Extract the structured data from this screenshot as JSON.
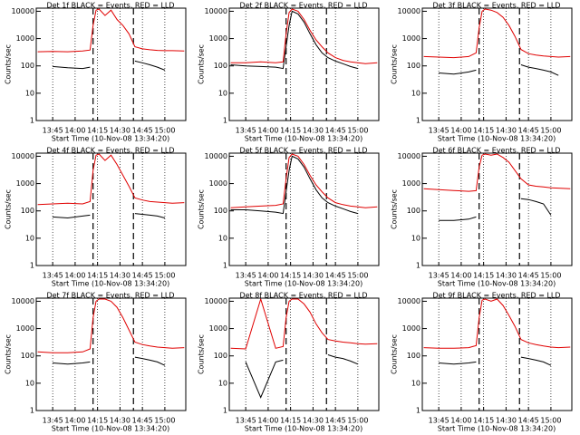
{
  "chart_data": [
    {
      "type": "line",
      "title": "Det 1f BLACK = Events, RED = LLD",
      "xlabel": "Start Time (10-Nov-08 13:34:20)",
      "ylabel": "Counts/sec",
      "log": true,
      "grid": true,
      "x": [
        "13:35",
        "13:45",
        "13:55",
        "14:05",
        "14:10",
        "14:12",
        "14:14",
        "14:16",
        "14:20",
        "14:24",
        "14:28",
        "14:32",
        "14:36",
        "14:40",
        "14:45",
        "14:50",
        "14:55",
        "15:00",
        "15:05",
        "15:13"
      ],
      "xlim": [
        "13:34",
        "15:14"
      ],
      "xticks": [
        "13:45",
        "14:00",
        "14:15",
        "14:30",
        "14:45",
        "15:00"
      ],
      "ylim": [
        1,
        13000
      ],
      "yticks": [
        1,
        10,
        100,
        1000,
        10000
      ],
      "markers": [
        "14:12",
        "14:39"
      ],
      "series": [
        {
          "name": "Events",
          "color": "#000000",
          "values": [
            null,
            95,
            85,
            80,
            90,
            null,
            null,
            null,
            null,
            null,
            null,
            null,
            null,
            150,
            130,
            110,
            90,
            70,
            null,
            null
          ]
        },
        {
          "name": "LLD",
          "color": "#e00000",
          "values": [
            330,
            340,
            330,
            350,
            380,
            3000,
            11000,
            12000,
            7000,
            11000,
            5000,
            3000,
            1500,
            500,
            420,
            390,
            370,
            360,
            360,
            350
          ]
        }
      ]
    },
    {
      "type": "line",
      "title": "Det 2f BLACK = Events, RED = LLD",
      "xlabel": "Start Time (10-Nov-08 13:34:20)",
      "ylabel": "Counts/sec",
      "log": true,
      "grid": true,
      "x": [
        "13:35",
        "13:45",
        "13:55",
        "14:05",
        "14:10",
        "14:12",
        "14:14",
        "14:16",
        "14:20",
        "14:24",
        "14:28",
        "14:32",
        "14:36",
        "14:40",
        "14:45",
        "14:50",
        "14:55",
        "15:00",
        "15:05",
        "15:13"
      ],
      "xlim": [
        "13:34",
        "15:14"
      ],
      "xticks": [
        "13:45",
        "14:00",
        "14:15",
        "14:30",
        "14:45",
        "15:00"
      ],
      "ylim": [
        1,
        13000
      ],
      "yticks": [
        1,
        10,
        100,
        1000,
        10000
      ],
      "markers": [
        "14:12",
        "14:39"
      ],
      "series": [
        {
          "name": "Events",
          "color": "#000000",
          "values": [
            110,
            100,
            95,
            90,
            80,
            500,
            3000,
            10000,
            8000,
            4000,
            1500,
            600,
            300,
            200,
            150,
            120,
            95,
            80,
            null,
            null
          ]
        },
        {
          "name": "LLD",
          "color": "#e00000",
          "values": [
            130,
            130,
            140,
            130,
            140,
            1500,
            9000,
            12000,
            10000,
            5000,
            2000,
            900,
            500,
            300,
            200,
            160,
            140,
            130,
            120,
            130
          ]
        }
      ]
    },
    {
      "type": "line",
      "title": "Det 3f BLACK = Events, RED = LLD",
      "xlabel": "Start Time (10-Nov-08 13:34:20)",
      "ylabel": "Counts/sec",
      "log": true,
      "grid": true,
      "x": [
        "13:35",
        "13:45",
        "13:55",
        "14:05",
        "14:10",
        "14:12",
        "14:14",
        "14:16",
        "14:20",
        "14:24",
        "14:28",
        "14:32",
        "14:36",
        "14:40",
        "14:45",
        "14:50",
        "14:55",
        "15:00",
        "15:05",
        "15:13"
      ],
      "xlim": [
        "13:34",
        "15:14"
      ],
      "xticks": [
        "13:45",
        "14:00",
        "14:15",
        "14:30",
        "14:45",
        "15:00"
      ],
      "ylim": [
        1,
        13000
      ],
      "yticks": [
        1,
        10,
        100,
        1000,
        10000
      ],
      "markers": [
        "14:12",
        "14:39"
      ],
      "series": [
        {
          "name": "Events",
          "color": "#000000",
          "values": [
            null,
            55,
            50,
            60,
            70,
            null,
            null,
            null,
            null,
            null,
            null,
            null,
            null,
            110,
            90,
            80,
            70,
            60,
            45,
            null
          ]
        },
        {
          "name": "LLD",
          "color": "#e00000",
          "values": [
            220,
            210,
            200,
            220,
            300,
            2500,
            10000,
            12000,
            11000,
            9000,
            6000,
            3000,
            1200,
            400,
            280,
            250,
            230,
            220,
            210,
            220
          ]
        }
      ]
    },
    {
      "type": "line",
      "title": "Det 4f BLACK = Events, RED = LLD",
      "xlabel": "Start Time (10-Nov-08 13:34:20)",
      "ylabel": "Counts/sec",
      "log": true,
      "grid": true,
      "x": [
        "13:35",
        "13:45",
        "13:55",
        "14:05",
        "14:10",
        "14:12",
        "14:14",
        "14:16",
        "14:20",
        "14:24",
        "14:28",
        "14:32",
        "14:36",
        "14:40",
        "14:45",
        "14:50",
        "14:55",
        "15:00",
        "15:05",
        "15:13"
      ],
      "xlim": [
        "13:34",
        "15:14"
      ],
      "xticks": [
        "13:45",
        "14:00",
        "14:15",
        "14:30",
        "14:45",
        "15:00"
      ],
      "ylim": [
        1,
        13000
      ],
      "yticks": [
        1,
        10,
        100,
        1000,
        10000
      ],
      "markers": [
        "14:12",
        "14:39"
      ],
      "series": [
        {
          "name": "Events",
          "color": "#000000",
          "values": [
            null,
            60,
            55,
            65,
            70,
            null,
            null,
            null,
            null,
            null,
            null,
            null,
            null,
            80,
            75,
            70,
            65,
            55,
            null,
            null
          ]
        },
        {
          "name": "LLD",
          "color": "#e00000",
          "values": [
            170,
            180,
            190,
            180,
            220,
            3000,
            11000,
            12000,
            7000,
            11000,
            5000,
            2000,
            800,
            300,
            250,
            220,
            210,
            200,
            190,
            200
          ]
        }
      ]
    },
    {
      "type": "line",
      "title": "Det 5f BLACK = Events, RED = LLD",
      "xlabel": "Start Time (10-Nov-08 13:34:20)",
      "ylabel": "Counts/sec",
      "log": true,
      "grid": true,
      "x": [
        "13:35",
        "13:45",
        "13:55",
        "14:05",
        "14:10",
        "14:12",
        "14:14",
        "14:16",
        "14:20",
        "14:24",
        "14:28",
        "14:32",
        "14:36",
        "14:40",
        "14:45",
        "14:50",
        "14:55",
        "15:00",
        "15:05",
        "15:13"
      ],
      "xlim": [
        "13:34",
        "15:14"
      ],
      "xticks": [
        "13:45",
        "14:00",
        "14:15",
        "14:30",
        "14:45",
        "15:00"
      ],
      "ylim": [
        1,
        13000
      ],
      "yticks": [
        1,
        10,
        100,
        1000,
        10000
      ],
      "markers": [
        "14:12",
        "14:39"
      ],
      "series": [
        {
          "name": "Events",
          "color": "#000000",
          "values": [
            110,
            110,
            100,
            90,
            80,
            500,
            3000,
            10000,
            8000,
            4000,
            1500,
            600,
            300,
            200,
            150,
            120,
            95,
            80,
            null,
            null
          ]
        },
        {
          "name": "LLD",
          "color": "#e00000",
          "values": [
            130,
            140,
            150,
            160,
            180,
            1500,
            9000,
            12000,
            10000,
            5000,
            2000,
            900,
            500,
            300,
            200,
            170,
            150,
            140,
            130,
            140
          ]
        }
      ]
    },
    {
      "type": "line",
      "title": "Det 6f BLACK = Events, RED = LLD",
      "xlabel": "Start Time (10-Nov-08 13:34:20)",
      "ylabel": "Counts/sec",
      "log": true,
      "grid": true,
      "x": [
        "13:35",
        "13:45",
        "13:55",
        "14:05",
        "14:10",
        "14:12",
        "14:14",
        "14:16",
        "14:20",
        "14:24",
        "14:28",
        "14:32",
        "14:36",
        "14:40",
        "14:45",
        "14:50",
        "14:55",
        "15:00",
        "15:05",
        "15:13"
      ],
      "xlim": [
        "13:34",
        "15:14"
      ],
      "xticks": [
        "13:45",
        "14:00",
        "14:15",
        "14:30",
        "14:45",
        "15:00"
      ],
      "ylim": [
        1,
        13000
      ],
      "yticks": [
        1,
        10,
        100,
        1000,
        10000
      ],
      "markers": [
        "14:12",
        "14:39"
      ],
      "series": [
        {
          "name": "Events",
          "color": "#000000",
          "values": [
            null,
            45,
            45,
            50,
            60,
            null,
            null,
            null,
            null,
            null,
            null,
            null,
            null,
            280,
            260,
            220,
            180,
            70,
            null,
            null
          ]
        },
        {
          "name": "LLD",
          "color": "#e00000",
          "values": [
            650,
            600,
            560,
            520,
            550,
            4000,
            11000,
            12000,
            11000,
            12000,
            9000,
            6000,
            3000,
            1500,
            900,
            800,
            750,
            700,
            680,
            650
          ]
        }
      ]
    },
    {
      "type": "line",
      "title": "Det 7f BLACK = Events, RED = LLD",
      "xlabel": "Start Time (10-Nov-08 13:34:20)",
      "ylabel": "Counts/sec",
      "log": true,
      "grid": true,
      "x": [
        "13:35",
        "13:45",
        "13:55",
        "14:05",
        "14:10",
        "14:12",
        "14:14",
        "14:16",
        "14:20",
        "14:24",
        "14:28",
        "14:32",
        "14:36",
        "14:40",
        "14:45",
        "14:50",
        "14:55",
        "15:00",
        "15:05",
        "15:13"
      ],
      "xlim": [
        "13:34",
        "15:14"
      ],
      "xticks": [
        "13:45",
        "14:00",
        "14:15",
        "14:30",
        "14:45",
        "15:00"
      ],
      "ylim": [
        1,
        13000
      ],
      "yticks": [
        1,
        10,
        100,
        1000,
        10000
      ],
      "markers": [
        "14:12",
        "14:39"
      ],
      "series": [
        {
          "name": "Events",
          "color": "#000000",
          "values": [
            null,
            55,
            50,
            55,
            60,
            null,
            null,
            null,
            null,
            null,
            null,
            null,
            null,
            90,
            80,
            70,
            60,
            45,
            null,
            null
          ]
        },
        {
          "name": "LLD",
          "color": "#e00000",
          "values": [
            140,
            130,
            130,
            140,
            180,
            2500,
            10000,
            12000,
            12000,
            10000,
            6000,
            2500,
            900,
            320,
            260,
            230,
            210,
            200,
            190,
            200
          ]
        }
      ]
    },
    {
      "type": "line",
      "title": "Det 8f BLACK = Events, RED = LLD",
      "xlabel": "Start Time (10-Nov-08 13:34:20)",
      "ylabel": "Counts/sec",
      "log": true,
      "grid": true,
      "x": [
        "13:35",
        "13:45",
        "13:55",
        "14:05",
        "14:10",
        "14:12",
        "14:14",
        "14:16",
        "14:20",
        "14:24",
        "14:28",
        "14:32",
        "14:36",
        "14:40",
        "14:45",
        "14:50",
        "14:55",
        "15:00",
        "15:05",
        "15:13"
      ],
      "xlim": [
        "13:34",
        "15:14"
      ],
      "xticks": [
        "13:45",
        "14:00",
        "14:15",
        "14:30",
        "14:45",
        "15:00"
      ],
      "ylim": [
        1,
        13000
      ],
      "yticks": [
        1,
        10,
        100,
        1000,
        10000
      ],
      "markers": [
        "14:12",
        "14:39"
      ],
      "series": [
        {
          "name": "Events",
          "color": "#000000",
          "values": [
            null,
            60,
            3,
            60,
            70,
            null,
            null,
            null,
            null,
            null,
            null,
            null,
            null,
            110,
            90,
            80,
            65,
            50,
            null,
            null
          ]
        },
        {
          "name": "LLD",
          "color": "#e00000",
          "values": [
            190,
            180,
            12000,
            190,
            220,
            2500,
            10000,
            12000,
            12000,
            8000,
            4000,
            1500,
            700,
            400,
            350,
            320,
            300,
            280,
            270,
            280
          ]
        }
      ]
    },
    {
      "type": "line",
      "title": "Det 9f BLACK = Events, RED = LLD",
      "xlabel": "Start Time (10-Nov-08 13:34:20)",
      "ylabel": "Counts/sec",
      "log": true,
      "grid": true,
      "x": [
        "13:35",
        "13:45",
        "13:55",
        "14:05",
        "14:10",
        "14:12",
        "14:14",
        "14:16",
        "14:20",
        "14:24",
        "14:28",
        "14:32",
        "14:36",
        "14:40",
        "14:45",
        "14:50",
        "14:55",
        "15:00",
        "15:05",
        "15:13"
      ],
      "xlim": [
        "13:34",
        "15:14"
      ],
      "xticks": [
        "13:45",
        "14:00",
        "14:15",
        "14:30",
        "14:45",
        "15:00"
      ],
      "ylim": [
        1,
        13000
      ],
      "yticks": [
        1,
        10,
        100,
        1000,
        10000
      ],
      "markers": [
        "14:12",
        "14:39"
      ],
      "series": [
        {
          "name": "Events",
          "color": "#000000",
          "values": [
            null,
            55,
            50,
            55,
            60,
            null,
            null,
            null,
            null,
            null,
            null,
            null,
            null,
            90,
            80,
            70,
            60,
            45,
            null,
            null
          ]
        },
        {
          "name": "LLD",
          "color": "#e00000",
          "values": [
            200,
            190,
            190,
            200,
            240,
            2500,
            11000,
            12000,
            10000,
            12000,
            7000,
            3000,
            1200,
            400,
            300,
            260,
            230,
            210,
            200,
            210
          ]
        }
      ]
    }
  ]
}
